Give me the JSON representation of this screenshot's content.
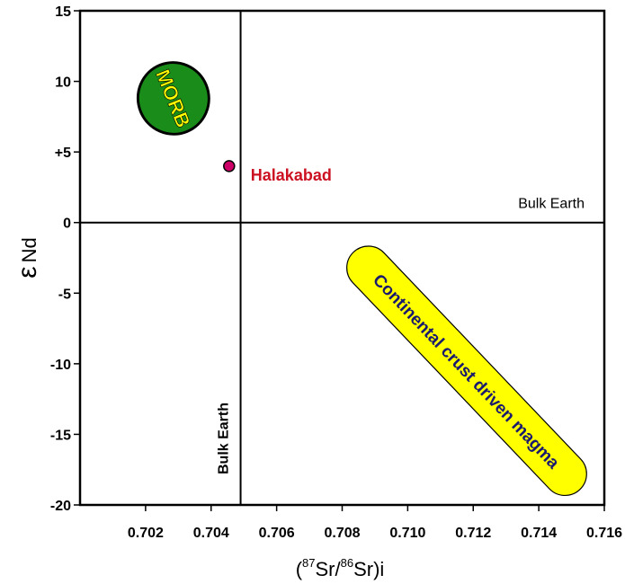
{
  "chart_data": {
    "type": "scatter",
    "title": "",
    "xlabel": {
      "open": "(",
      "sup1": "87",
      "mid": "Sr/",
      "sup2": "86",
      "close": "Sr)i"
    },
    "ylabel": {
      "symbol": "ε",
      "text": "Nd"
    },
    "xlim": [
      0.7,
      0.716
    ],
    "ylim": [
      -20,
      15
    ],
    "x_ticks": [
      {
        "value": 0.702,
        "label": "0.702"
      },
      {
        "value": 0.704,
        "label": "0.704"
      },
      {
        "value": 0.706,
        "label": "0.706"
      },
      {
        "value": 0.708,
        "label": "0.708"
      },
      {
        "value": 0.71,
        "label": "0.710"
      },
      {
        "value": 0.712,
        "label": "0.712"
      },
      {
        "value": 0.714,
        "label": "0.714"
      },
      {
        "value": 0.716,
        "label": "0.716"
      }
    ],
    "y_ticks": [
      {
        "value": 15,
        "label": "15"
      },
      {
        "value": 10,
        "label": "10"
      },
      {
        "value": 5,
        "label": "+5"
      },
      {
        "value": 0,
        "label": "0"
      },
      {
        "value": -5,
        "label": "-5"
      },
      {
        "value": -10,
        "label": "-10"
      },
      {
        "value": -15,
        "label": "-15"
      },
      {
        "value": -20,
        "label": "-20"
      }
    ],
    "reference_lines": [
      {
        "axis": "y",
        "value": 0,
        "label": "Bulk Earth"
      },
      {
        "axis": "x",
        "value": 0.7049,
        "label": "Bulk Earth"
      }
    ],
    "regions": [
      {
        "label": "MORB",
        "fill": "#1a8c1a",
        "text_color": "#ffff00",
        "center": [
          0.70285,
          8.8
        ],
        "span": [
          0.0008,
          4.1
        ],
        "rotation": 68,
        "shape": "ellipse"
      },
      {
        "label": "Continental crust driven magma",
        "fill": "#ffff00",
        "text_color": "#1a1a6e",
        "from": [
          0.7088,
          -3.2
        ],
        "to": [
          0.7148,
          -17.8
        ],
        "shape": "band",
        "rotation": 52
      }
    ],
    "points": [
      {
        "name": "Halakabad",
        "x": 0.70455,
        "y": 4.0,
        "color": "#cc0066",
        "label_color": "#cc1122"
      }
    ],
    "grid": false
  }
}
